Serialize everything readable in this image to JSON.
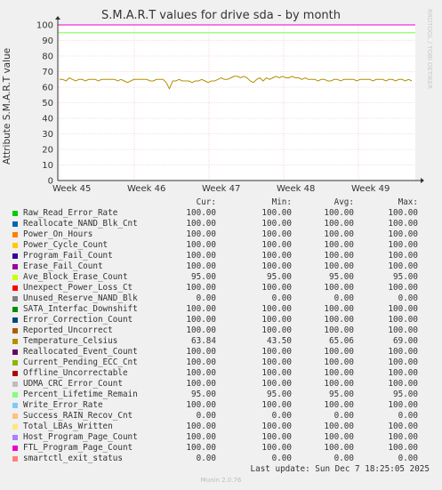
{
  "chart_data": {
    "type": "line",
    "title": "S.M.A.R.T values for drive sda - by month",
    "ylabel": "Attribute S.M.A.R.T value",
    "ylim": [
      0,
      100
    ],
    "y_ticks": [
      "0",
      "10",
      "20",
      "30",
      "40",
      "50",
      "60",
      "70",
      "80",
      "90",
      "100"
    ],
    "x_ticks": [
      "Week 45",
      "Week 46",
      "Week 47",
      "Week 48",
      "Week 49"
    ],
    "grid": true,
    "series": [
      {
        "name": "Raw_Read_Error_Rate",
        "color": "#00cc00",
        "cur": "100.00",
        "min": "100.00",
        "avg": "100.00",
        "max": "100.00"
      },
      {
        "name": "Reallocate_NAND_Blk_Cnt",
        "color": "#0066b3",
        "cur": "100.00",
        "min": "100.00",
        "avg": "100.00",
        "max": "100.00"
      },
      {
        "name": "Power_On_Hours",
        "color": "#ff8000",
        "cur": "100.00",
        "min": "100.00",
        "avg": "100.00",
        "max": "100.00"
      },
      {
        "name": "Power_Cycle_Count",
        "color": "#ffcc00",
        "cur": "100.00",
        "min": "100.00",
        "avg": "100.00",
        "max": "100.00"
      },
      {
        "name": "Program_Fail_Count",
        "color": "#330099",
        "cur": "100.00",
        "min": "100.00",
        "avg": "100.00",
        "max": "100.00"
      },
      {
        "name": "Erase_Fail_Count",
        "color": "#990099",
        "cur": "100.00",
        "min": "100.00",
        "avg": "100.00",
        "max": "100.00"
      },
      {
        "name": "Ave_Block_Erase_Count",
        "color": "#ccff00",
        "cur": "95.00",
        "min": "95.00",
        "avg": "95.00",
        "max": "95.00"
      },
      {
        "name": "Unexpect_Power_Loss_Ct",
        "color": "#ff0000",
        "cur": "100.00",
        "min": "100.00",
        "avg": "100.00",
        "max": "100.00"
      },
      {
        "name": "Unused_Reserve_NAND_Blk",
        "color": "#808080",
        "cur": "0.00",
        "min": "0.00",
        "avg": "0.00",
        "max": "0.00"
      },
      {
        "name": "SATA_Interfac_Downshift",
        "color": "#008f00",
        "cur": "100.00",
        "min": "100.00",
        "avg": "100.00",
        "max": "100.00"
      },
      {
        "name": "Error_Correction_Count",
        "color": "#00487d",
        "cur": "100.00",
        "min": "100.00",
        "avg": "100.00",
        "max": "100.00"
      },
      {
        "name": "Reported_Uncorrect",
        "color": "#b35a00",
        "cur": "100.00",
        "min": "100.00",
        "avg": "100.00",
        "max": "100.00"
      },
      {
        "name": "Temperature_Celsius",
        "color": "#b38f00",
        "cur": "63.84",
        "min": "43.50",
        "avg": "65.06",
        "max": "69.00"
      },
      {
        "name": "Reallocated_Event_Count",
        "color": "#6b006b",
        "cur": "100.00",
        "min": "100.00",
        "avg": "100.00",
        "max": "100.00"
      },
      {
        "name": "Current_Pending_ECC_Cnt",
        "color": "#8fb300",
        "cur": "100.00",
        "min": "100.00",
        "avg": "100.00",
        "max": "100.00"
      },
      {
        "name": "Offline_Uncorrectable",
        "color": "#b30000",
        "cur": "100.00",
        "min": "100.00",
        "avg": "100.00",
        "max": "100.00"
      },
      {
        "name": "UDMA_CRC_Error_Count",
        "color": "#bebebe",
        "cur": "100.00",
        "min": "100.00",
        "avg": "100.00",
        "max": "100.00"
      },
      {
        "name": "Percent_Lifetime_Remain",
        "color": "#80ff80",
        "cur": "95.00",
        "min": "95.00",
        "avg": "95.00",
        "max": "95.00"
      },
      {
        "name": "Write_Error_Rate",
        "color": "#80c9ff",
        "cur": "100.00",
        "min": "100.00",
        "avg": "100.00",
        "max": "100.00"
      },
      {
        "name": "Success_RAIN_Recov_Cnt",
        "color": "#ffc080",
        "cur": "0.00",
        "min": "0.00",
        "avg": "0.00",
        "max": "0.00"
      },
      {
        "name": "Total_LBAs_Written",
        "color": "#ffe680",
        "cur": "100.00",
        "min": "100.00",
        "avg": "100.00",
        "max": "100.00"
      },
      {
        "name": "Host_Program_Page_Count",
        "color": "#aa80ff",
        "cur": "100.00",
        "min": "100.00",
        "avg": "100.00",
        "max": "100.00"
      },
      {
        "name": "FTL_Program_Page_Count",
        "color": "#ee00cc",
        "cur": "100.00",
        "min": "100.00",
        "avg": "100.00",
        "max": "100.00"
      },
      {
        "name": "smartctl_exit_status",
        "color": "#ff8080",
        "cur": "0.00",
        "min": "0.00",
        "avg": "0.00",
        "max": "0.00"
      }
    ],
    "temperature_trace": [
      65,
      65,
      64,
      66,
      65,
      64,
      65,
      65,
      64,
      65,
      65,
      65,
      64,
      65,
      65,
      65,
      65,
      65,
      64,
      65,
      64,
      63,
      64,
      65,
      65,
      65,
      65,
      65,
      64,
      64,
      65,
      65,
      65,
      63,
      59,
      64,
      64,
      65,
      64,
      64,
      64,
      63,
      64,
      64,
      65,
      64,
      63,
      64,
      64,
      65,
      66,
      65,
      65,
      66,
      67,
      67,
      66,
      67,
      66,
      64,
      63,
      65,
      66,
      64,
      66,
      65,
      66,
      67,
      66,
      67,
      66,
      66,
      67,
      66,
      66,
      65,
      66,
      65,
      65,
      65,
      64,
      65,
      65,
      64,
      64,
      65,
      65,
      64,
      65,
      65,
      65,
      65,
      64,
      65,
      65,
      65,
      65,
      64,
      65,
      65,
      65,
      64,
      65,
      65,
      64,
      65,
      65,
      64,
      65,
      64
    ]
  },
  "watermark": "RRDTOOL / TOBI OETIKER",
  "legend_header": {
    "cur": "Cur:",
    "min": "Min:",
    "avg": "Avg:",
    "max": "Max:"
  },
  "last_update": "Last update: Sun Dec  7 18:25:05 2025",
  "footer": "Munin 2.0.76"
}
